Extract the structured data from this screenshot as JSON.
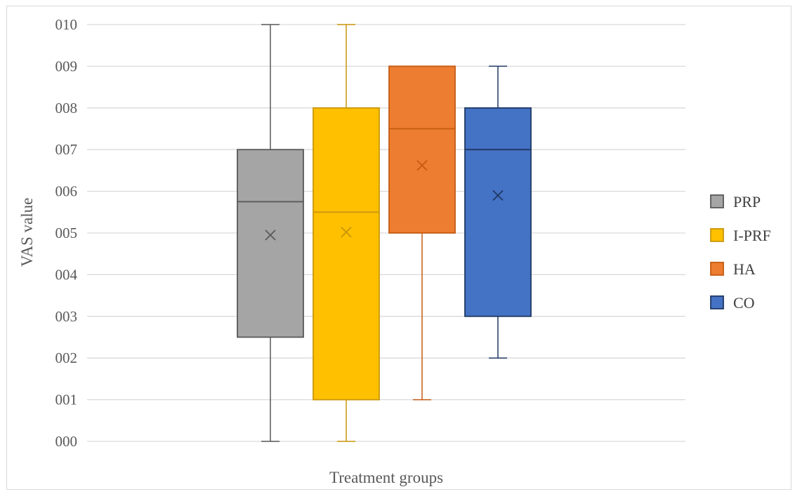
{
  "chart_data": {
    "type": "boxplot",
    "xlabel": "Treatment groups",
    "ylabel": "VAS value",
    "ylim": [
      0,
      10
    ],
    "y_ticks": [
      "000",
      "001",
      "002",
      "003",
      "004",
      "005",
      "006",
      "007",
      "008",
      "009",
      "010"
    ],
    "grid": true,
    "legend_position": "right",
    "series": [
      {
        "name": "PRP",
        "color": "#a5a5a5",
        "edge": "#595959",
        "min": 0,
        "q1": 2.5,
        "median": 5.75,
        "q3": 7,
        "max": 10,
        "mean": 4.95
      },
      {
        "name": "I-PRF",
        "color": "#ffc000",
        "edge": "#c9960c",
        "min": 0,
        "q1": 1,
        "median": 5.5,
        "q3": 8,
        "max": 10,
        "mean": 5.02
      },
      {
        "name": "HA",
        "color": "#ed7d31",
        "edge": "#c55a11",
        "min": 1,
        "q1": 5,
        "median": 7.5,
        "q3": 9,
        "max": 9,
        "mean": 6.62
      },
      {
        "name": "CO",
        "color": "#4472c4",
        "edge": "#203864",
        "min": 2,
        "q1": 3,
        "median": 7,
        "q3": 8,
        "max": 9,
        "mean": 5.9
      }
    ]
  }
}
